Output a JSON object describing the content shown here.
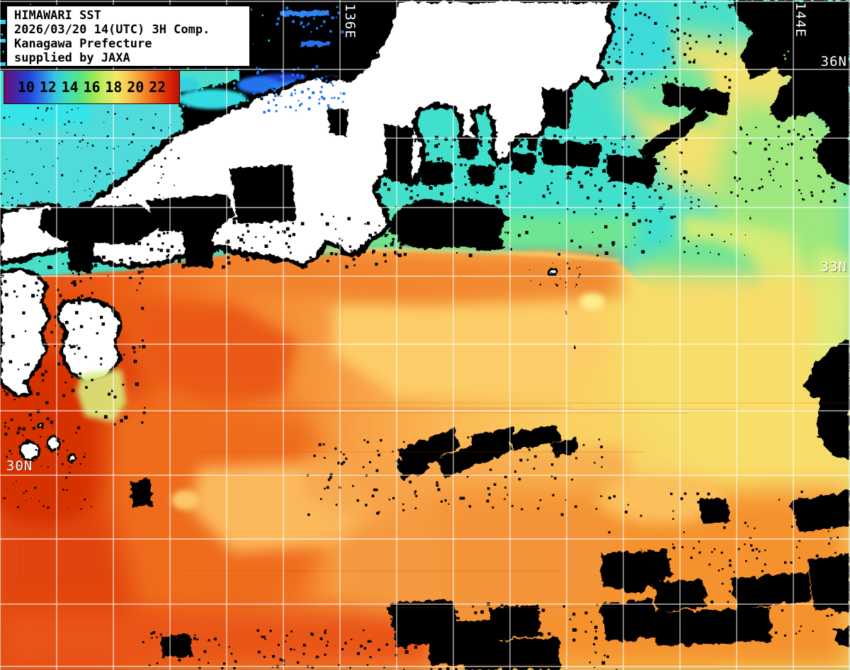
{
  "header": {
    "line1": "HIMAWARI SST",
    "line2": "2026/03/20 14(UTC) 3H Comp.",
    "line3": "Kanagawa Prefecture",
    "line4": "supplied by JAXA"
  },
  "colorbar": {
    "ticks": [
      "10",
      "12",
      "14",
      "16",
      "18",
      "20",
      "22"
    ],
    "gradient": [
      "#6e0f72",
      "#4326a8",
      "#2244d8",
      "#2e7ae8",
      "#33c4e4",
      "#3fdfba",
      "#55e387",
      "#8fe95c",
      "#c9ec5e",
      "#f2e968",
      "#f8c34a",
      "#f59230",
      "#ee6018",
      "#dd2f08",
      "#c20c04"
    ]
  },
  "grid": {
    "line_color": "#ffffff",
    "lon_labels": [
      {
        "text": "136E"
      },
      {
        "text": "144E"
      }
    ],
    "lat_labels": [
      {
        "text": "36N"
      },
      {
        "text": "33N"
      },
      {
        "text": "30N"
      }
    ]
  },
  "map": {
    "land_color": "#ffffff",
    "no_data_color": "#000000",
    "sea_palette": {
      "cold_blue": "#2273ec",
      "cyan": "#3ae2e2",
      "teal": "#44dfc8",
      "green": "#9ce57e",
      "yellow_green": "#d5ec75",
      "yellow": "#f8dd6b",
      "light_orange": "#fbc05c",
      "orange": "#f58d35",
      "deep_orange": "#ef6c1e",
      "red": "#e04408",
      "dark_red": "#d63204",
      "purple": "#5a34b4"
    }
  }
}
